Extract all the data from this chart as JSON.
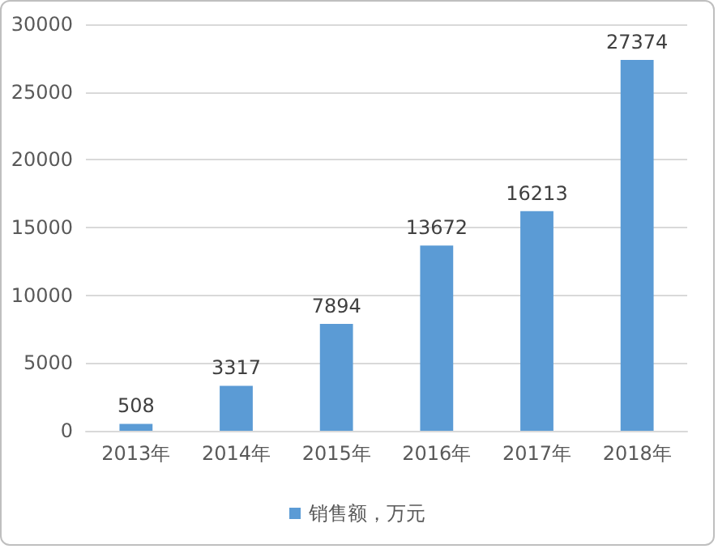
{
  "chart_data": {
    "type": "bar",
    "categories": [
      "2013年",
      "2014年",
      "2015年",
      "2016年",
      "2017年",
      "2018年"
    ],
    "series": [
      {
        "name": "销售额，万元",
        "color": "#5b9bd5",
        "values": [
          508,
          3317,
          7894,
          13672,
          16213,
          27374
        ]
      }
    ],
    "ylim": [
      0,
      30000
    ],
    "yticks": [
      0,
      5000,
      10000,
      15000,
      20000,
      25000,
      30000
    ],
    "grid": "y",
    "legend": "bottom",
    "data_labels": true
  }
}
